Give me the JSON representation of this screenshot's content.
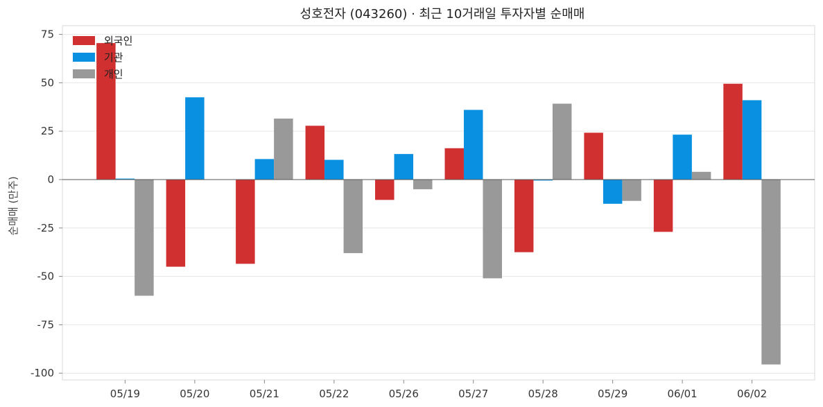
{
  "chart_data": {
    "type": "bar",
    "title": "성호전자 (043260)  ·  최근 10거래일 투자자별 순매매",
    "xlabel": "",
    "ylabel": "순매매 (만주)",
    "categories": [
      "05/19",
      "05/20",
      "05/21",
      "05/22",
      "05/26",
      "05/27",
      "05/28",
      "05/29",
      "06/01",
      "06/02"
    ],
    "series": [
      {
        "name": "외국인",
        "color": "#d03030",
        "values": [
          70.5,
          -45,
          -43.5,
          27.8,
          -10.5,
          16.2,
          -37.5,
          24.2,
          -27,
          49.5
        ]
      },
      {
        "name": "기관",
        "color": "#0a90e0",
        "values": [
          0.5,
          42.5,
          10.6,
          10.2,
          13.2,
          36.0,
          -0.5,
          -12.5,
          23.2,
          41.0
        ]
      },
      {
        "name": "개인",
        "color": "#999999",
        "values": [
          -60,
          0,
          31.5,
          -38,
          -5,
          -51,
          39.2,
          -11,
          4,
          -95.5
        ]
      }
    ],
    "ylim": [
      -103.5,
      79.5
    ],
    "yticks": [
      -100,
      -75,
      -50,
      -25,
      0,
      25,
      50,
      75
    ],
    "grid": true,
    "legend_position": "top-left"
  }
}
